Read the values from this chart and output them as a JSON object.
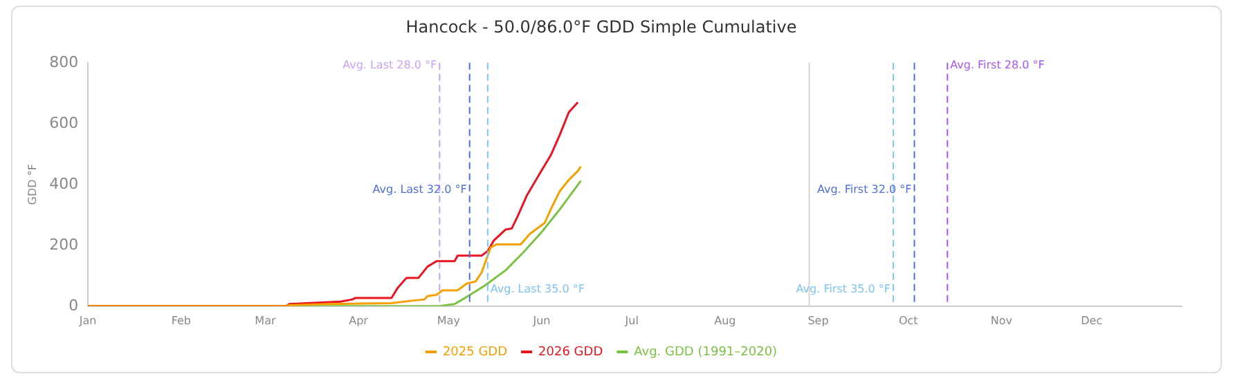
{
  "chart_data": {
    "type": "line",
    "title": "Hancock - 50.0/86.0°F GDD Simple Cumulative",
    "ylabel": "GDD °F",
    "xlim": [
      "--01-01",
      "--12-31"
    ],
    "xticks": [
      {
        "value": "--01-01",
        "label": "Jan"
      },
      {
        "value": "--02-01",
        "label": "Feb"
      },
      {
        "value": "--03-01",
        "label": "Mar"
      },
      {
        "value": "--04-01",
        "label": "Apr"
      },
      {
        "value": "--05-01",
        "label": "May"
      },
      {
        "value": "--06-01",
        "label": "Jun"
      },
      {
        "value": "--07-01",
        "label": "Jul"
      },
      {
        "value": "--08-01",
        "label": "Aug"
      },
      {
        "value": "--09-01",
        "label": "Sep"
      },
      {
        "value": "--10-01",
        "label": "Oct"
      },
      {
        "value": "--11-01",
        "label": "Nov"
      },
      {
        "value": "--12-01",
        "label": "Dec"
      }
    ],
    "ylim": [
      0,
      800
    ],
    "yticks": [
      0,
      200,
      400,
      600,
      800
    ],
    "grid": false,
    "legend": "bottom",
    "marker": "none",
    "line_style": "solid",
    "series": [
      {
        "name": "2025 GDD",
        "color": "#f5a000",
        "x": [
          "--01-01",
          "--03-08",
          "--03-09",
          "--03-22",
          "--04-12",
          "--04-19",
          "--04-23",
          "--04-24",
          "--04-27",
          "--04-29",
          "--05-04",
          "--05-07",
          "--05-10",
          "--05-12",
          "--05-15",
          "--05-17",
          "--05-25",
          "--05-28",
          "--06-02",
          "--06-04",
          "--06-07",
          "--06-10",
          "--06-13",
          "--06-14"
        ],
        "values": [
          0,
          0,
          3,
          7,
          10,
          18,
          22,
          33,
          37,
          52,
          52,
          74,
          81,
          111,
          193,
          203,
          203,
          237,
          274,
          318,
          378,
          415,
          444,
          459
        ]
      },
      {
        "name": "2026 GDD",
        "color": "#e8141e",
        "x": [
          "--01-01",
          "--03-08",
          "--03-09",
          "--03-20",
          "--03-26",
          "--03-30",
          "--03-31",
          "--04-12",
          "--04-14",
          "--04-17",
          "--04-21",
          "--04-24",
          "--04-27",
          "--05-03",
          "--05-04",
          "--05-12",
          "--05-14",
          "--05-16",
          "--05-20",
          "--05-22",
          "--05-24",
          "--05-27",
          "--05-31",
          "--06-04",
          "--06-07",
          "--06-10",
          "--06-13"
        ],
        "values": [
          0,
          0,
          7,
          12,
          15,
          22,
          27,
          27,
          59,
          93,
          93,
          130,
          148,
          148,
          166,
          166,
          181,
          215,
          252,
          255,
          296,
          363,
          430,
          496,
          563,
          637,
          670
        ]
      },
      {
        "name": "Avg. GDD (1991–2020)",
        "color": "#7cc242",
        "x": [
          "--01-01",
          "--04-28",
          "--05-03",
          "--05-07",
          "--05-13",
          "--05-20",
          "--05-26",
          "--06-01",
          "--06-07",
          "--06-14"
        ],
        "values": [
          0,
          0,
          7,
          30,
          67,
          118,
          178,
          244,
          318,
          412
        ]
      }
    ],
    "ref_lines": [
      {
        "axis": "x",
        "value": "--04-28",
        "label": "Avg. Last 28.0 °F",
        "color": "#c9a3f7",
        "line_style": "dashed"
      },
      {
        "axis": "x",
        "value": "--05-08",
        "label": "Avg. Last 32.0 °F",
        "color": "#4f6fe0",
        "line_style": "dashed"
      },
      {
        "axis": "x",
        "value": "--05-14",
        "label": "Avg. Last 35.0 °F",
        "color": "#7cc4f4",
        "line_style": "dashed"
      },
      {
        "axis": "x",
        "value": "--08-29",
        "label": null,
        "color": "#d4d4d4",
        "line_style": "solid"
      },
      {
        "axis": "x",
        "value": "--09-26",
        "label": "Avg. First 35.0 °F",
        "color": "#7cc4f4",
        "line_style": "dashed"
      },
      {
        "axis": "x",
        "value": "--10-03",
        "label": "Avg. First 32.0 °F",
        "color": "#4f6fe0",
        "line_style": "dashed"
      },
      {
        "axis": "x",
        "value": "--10-14",
        "label": "Avg. First 28.0 °F",
        "color": "#a855f7",
        "line_style": "dashed"
      }
    ]
  }
}
